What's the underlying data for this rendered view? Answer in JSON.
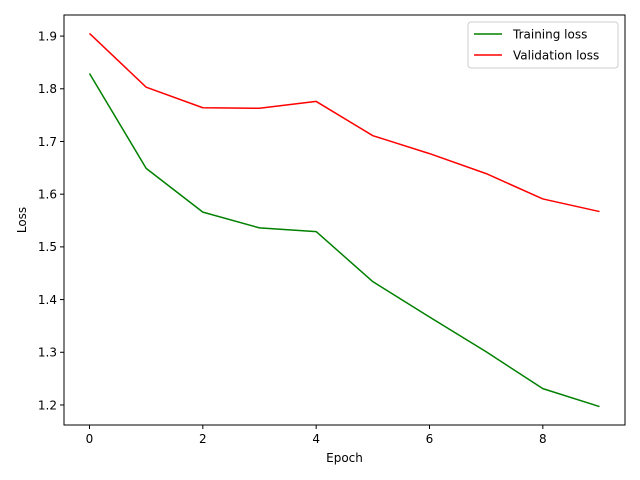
{
  "chart_data": {
    "type": "line",
    "title": "",
    "xlabel": "Epoch",
    "ylabel": "Loss",
    "xlim": [
      -0.45,
      9.45
    ],
    "ylim": [
      1.162,
      1.94
    ],
    "x_ticks": [
      0,
      2,
      4,
      6,
      8
    ],
    "y_ticks": [
      1.2,
      1.3,
      1.4,
      1.5,
      1.6,
      1.7,
      1.8,
      1.9
    ],
    "grid": false,
    "legend_position": "top-right",
    "x": [
      0,
      1,
      2,
      3,
      4,
      5,
      6,
      7,
      8,
      9
    ],
    "series": [
      {
        "name": "Training loss",
        "color": "#008000",
        "values": [
          1.829,
          1.649,
          1.566,
          1.536,
          1.529,
          1.434,
          1.367,
          1.301,
          1.231,
          1.197
        ]
      },
      {
        "name": "Validation loss",
        "color": "#ff0000",
        "values": [
          1.905,
          1.803,
          1.764,
          1.763,
          1.776,
          1.711,
          1.677,
          1.639,
          1.591,
          1.567
        ]
      }
    ]
  }
}
